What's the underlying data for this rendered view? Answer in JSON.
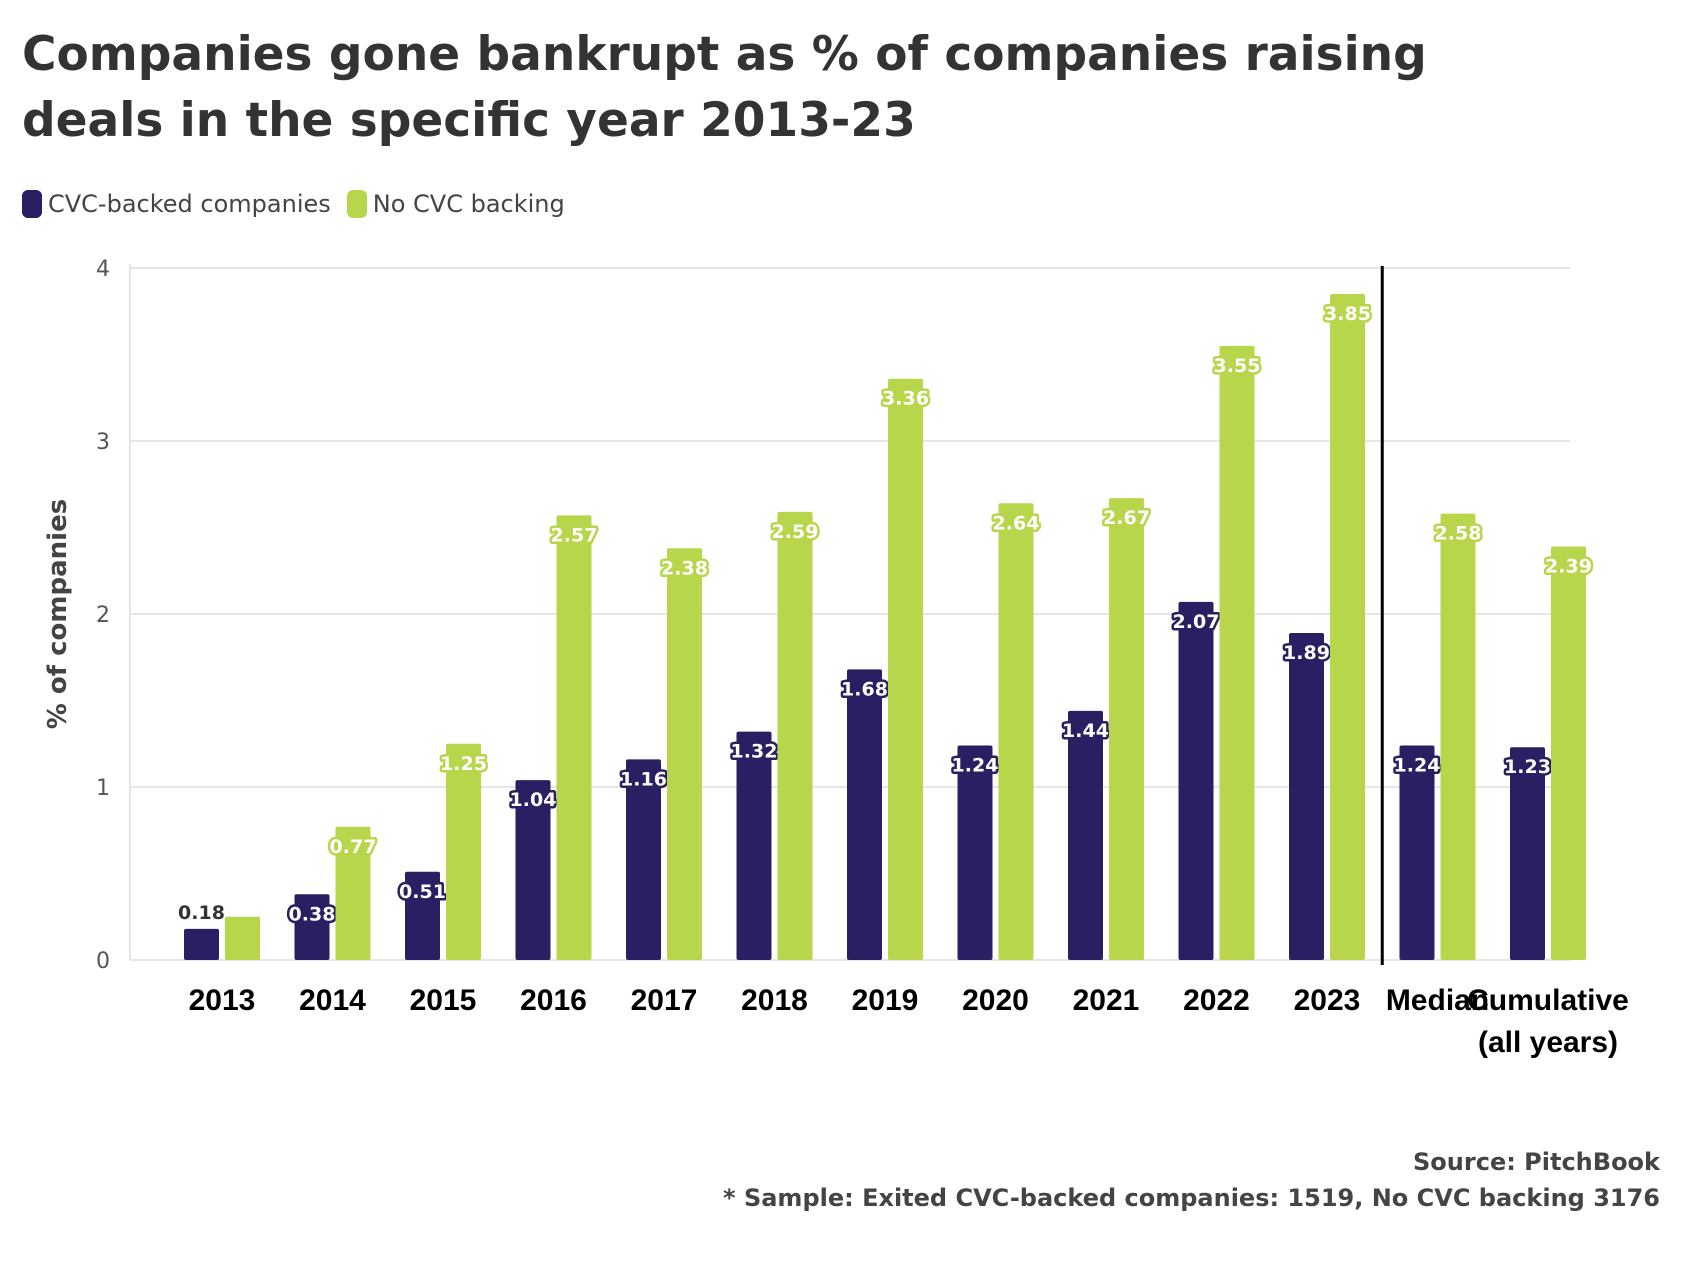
{
  "title": "Companies gone bankrupt as % of companies raising deals in the specific year 2013-23",
  "legend": [
    {
      "label": "CVC-backed companies",
      "color": "#2a1f63"
    },
    {
      "label": "No CVC backing",
      "color": "#b7d64b"
    }
  ],
  "footer": {
    "source": "Source: PitchBook",
    "note": "* Sample: Exited CVC-backed companies: 1519, No CVC backing 3176"
  },
  "chart_data": {
    "type": "bar",
    "ylabel": "% of companies",
    "ylim": [
      0,
      4
    ],
    "yticks": [
      0,
      1,
      2,
      3,
      4
    ],
    "grid": true,
    "legend_position": "top-left",
    "categories": [
      "2013",
      "2014",
      "2015",
      "2016",
      "2017",
      "2018",
      "2019",
      "2020",
      "2021",
      "2022",
      "2023",
      "Median",
      "Cumulative\n(all years)"
    ],
    "separator_after_category": "2023",
    "series": [
      {
        "name": "CVC-backed companies",
        "color": "#2a1f63",
        "values": [
          0.18,
          0.38,
          0.51,
          1.04,
          1.16,
          1.32,
          1.68,
          1.24,
          1.44,
          2.07,
          1.89,
          1.24,
          1.23
        ],
        "labels": [
          "0.18",
          "0.38",
          "0.51",
          "1.04",
          "1.16",
          "1.32",
          "1.68",
          "1.24",
          "1.44",
          "2.07",
          "1.89",
          "1.24",
          "1.23"
        ]
      },
      {
        "name": "No CVC backing",
        "color": "#b7d64b",
        "values": [
          0.25,
          0.77,
          1.25,
          2.57,
          2.38,
          2.59,
          3.36,
          2.64,
          2.67,
          3.55,
          3.85,
          2.58,
          2.39
        ],
        "labels": [
          "",
          "0.77",
          "1.25",
          "2.57",
          "2.38",
          "2.59",
          "3.36",
          "2.64",
          "2.67",
          "3.55",
          "3.85",
          "2.58",
          "2.39"
        ]
      }
    ]
  }
}
